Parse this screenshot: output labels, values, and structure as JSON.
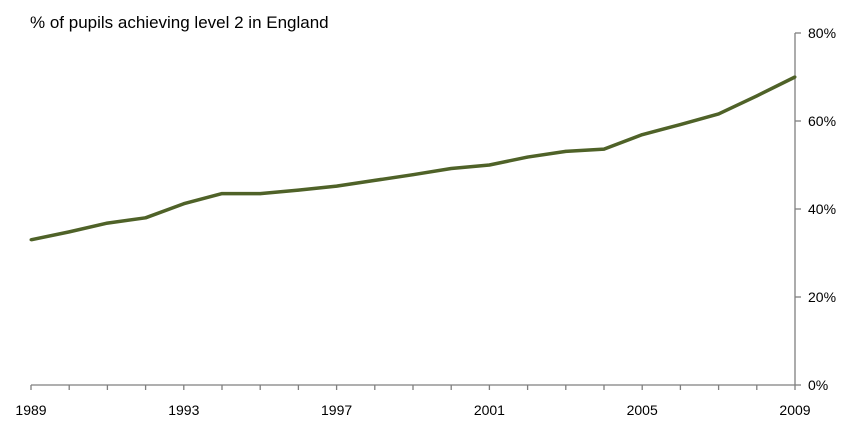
{
  "chart_data": {
    "type": "line",
    "title": "% of pupils achieving level 2 in England",
    "xlabel": "",
    "ylabel": "",
    "x": [
      1989,
      1990,
      1991,
      1992,
      1993,
      1994,
      1995,
      1996,
      1997,
      1998,
      1999,
      2000,
      2001,
      2002,
      2003,
      2004,
      2005,
      2006,
      2007,
      2008,
      2009
    ],
    "series": [
      {
        "values": [
          33,
          34.8,
          36.8,
          38,
          41.2,
          43.5,
          43.5,
          44.3,
          45.2,
          46.5,
          47.8,
          49.2,
          50,
          51.8,
          53.1,
          53.6,
          56.9,
          59.2,
          61.6,
          65.7,
          70
        ]
      }
    ],
    "xlim": [
      1989,
      2009
    ],
    "ylim": [
      0,
      80
    ],
    "x_tick_labels": [
      "1989",
      "1993",
      "1997",
      "2001",
      "2005",
      "2009"
    ],
    "y_tick_labels": [
      "0%",
      "20%",
      "40%",
      "60%",
      "80%"
    ],
    "y_axis_position": "right",
    "grid": false,
    "legend": "none",
    "line_color": "#4f6228"
  }
}
